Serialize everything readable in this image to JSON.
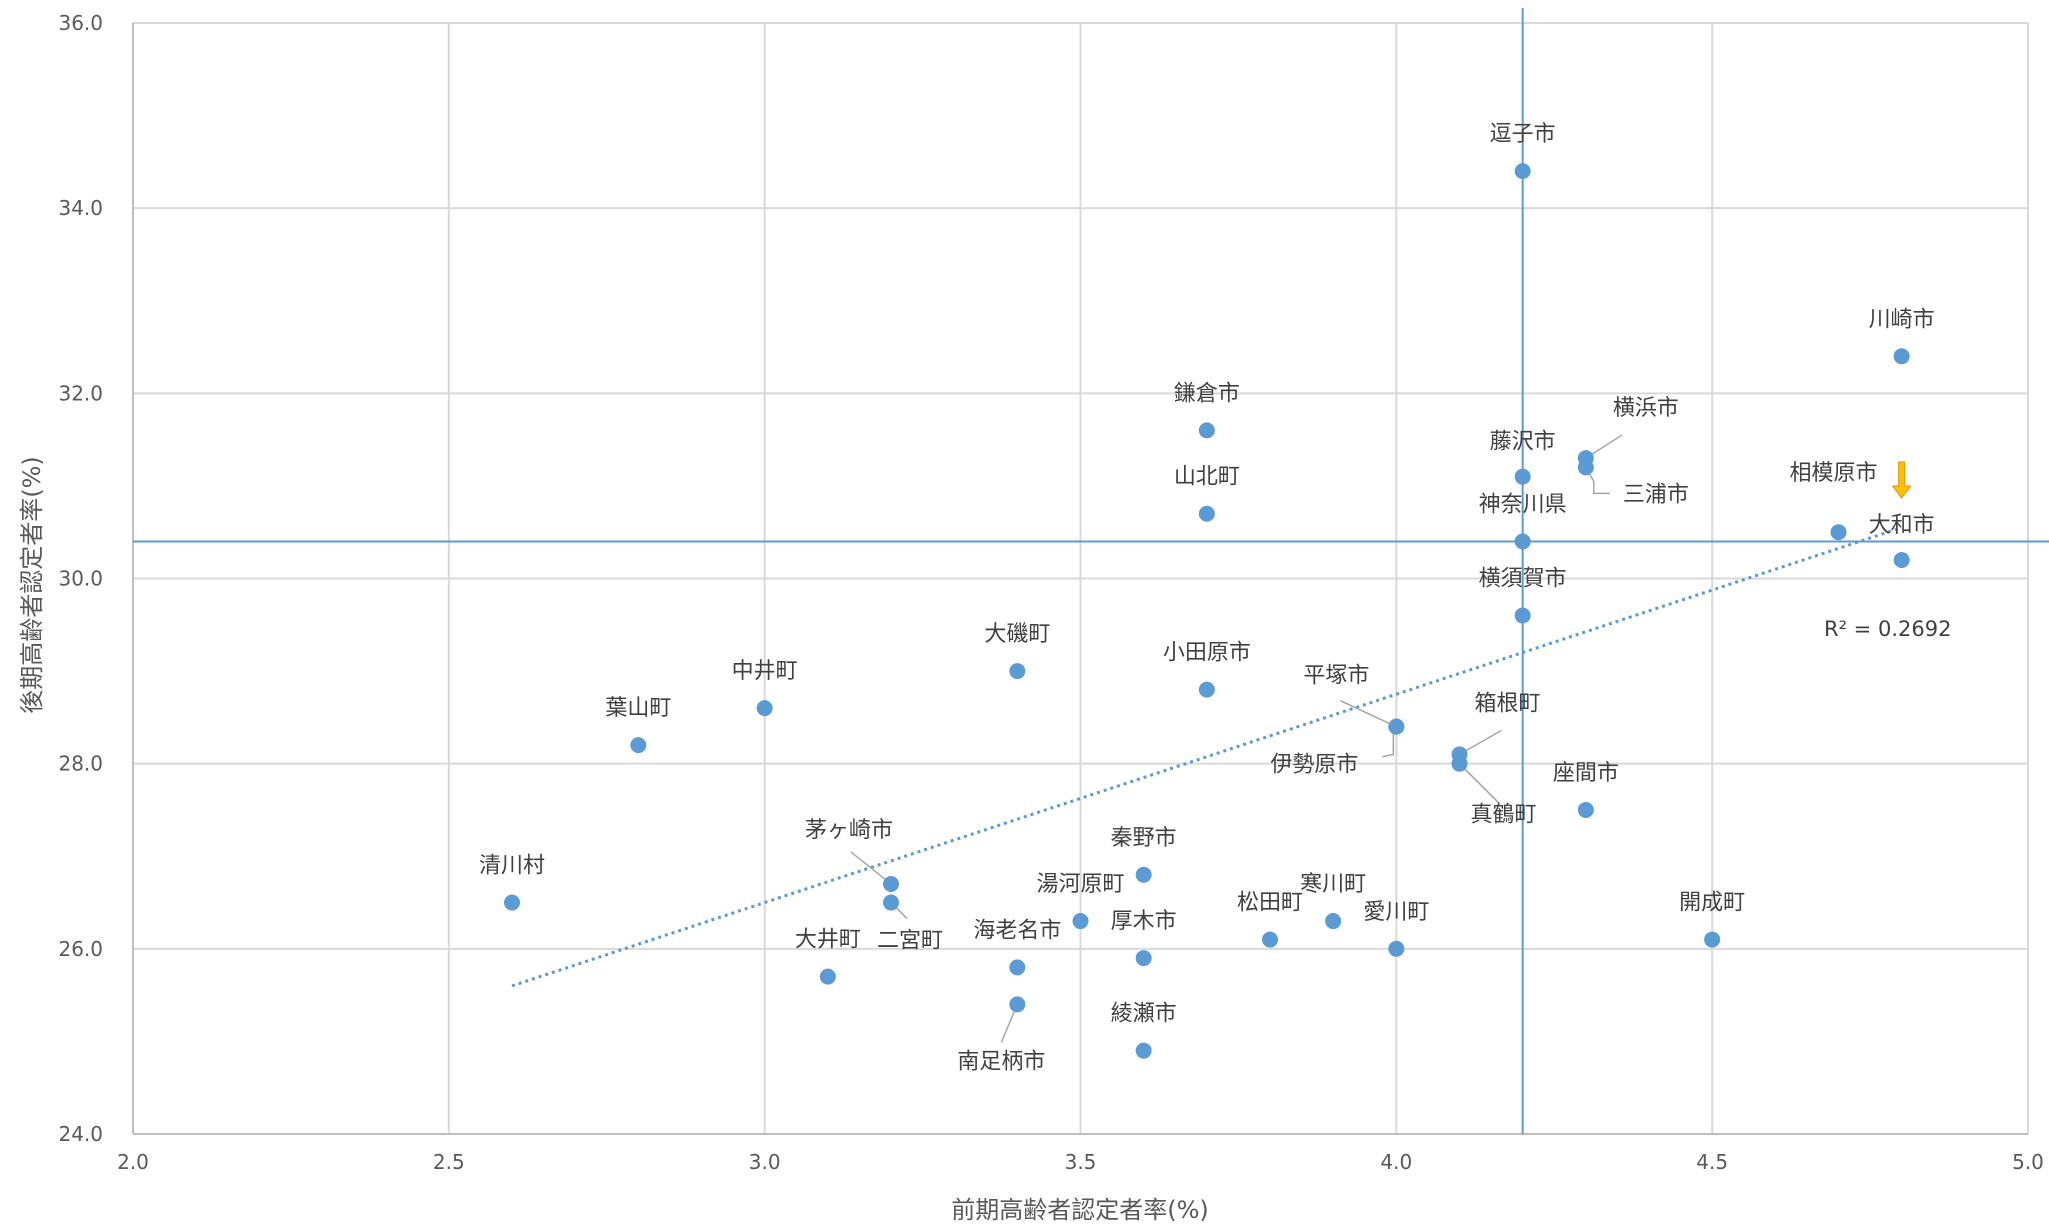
{
  "chart_data": {
    "type": "scatter",
    "xlabel": "前期高齢者認定者率(%)",
    "ylabel": "後期高齢者認定者率(%)",
    "xlim": [
      2.0,
      5.0
    ],
    "ylim": [
      24.0,
      36.0
    ],
    "x_ticks": [
      "2.0",
      "2.5",
      "3.0",
      "3.5",
      "4.0",
      "4.5",
      "5.0"
    ],
    "y_ticks": [
      "24.0",
      "26.0",
      "28.0",
      "30.0",
      "32.0",
      "34.0",
      "36.0"
    ],
    "grid": true,
    "point_color": "#5b9bd5",
    "reference_lines": {
      "x": 4.2,
      "y": 30.4,
      "color": "#5b9bd5"
    },
    "trendline": {
      "type": "linear",
      "x": [
        2.6,
        4.8
      ],
      "y": [
        25.6,
        30.55
      ],
      "style": "dotted",
      "color": "#5b9bd5",
      "r2_label": "R² = 0.2692"
    },
    "highlight_arrow": {
      "target": "大和市",
      "color": "#ffc000"
    },
    "points": [
      {
        "name": "逗子市",
        "x": 4.2,
        "y": 34.4
      },
      {
        "name": "川崎市",
        "x": 4.8,
        "y": 32.4
      },
      {
        "name": "鎌倉市",
        "x": 3.7,
        "y": 31.6
      },
      {
        "name": "横浜市",
        "x": 4.3,
        "y": 31.3
      },
      {
        "name": "三浦市",
        "x": 4.3,
        "y": 31.2
      },
      {
        "name": "藤沢市",
        "x": 4.2,
        "y": 31.1
      },
      {
        "name": "山北町",
        "x": 3.7,
        "y": 30.7
      },
      {
        "name": "相模原市",
        "x": 4.7,
        "y": 30.5
      },
      {
        "name": "神奈川県",
        "x": 4.2,
        "y": 30.4
      },
      {
        "name": "大和市",
        "x": 4.8,
        "y": 30.2
      },
      {
        "name": "横須賀市",
        "x": 4.2,
        "y": 29.6
      },
      {
        "name": "大磯町",
        "x": 3.4,
        "y": 29.0
      },
      {
        "name": "小田原市",
        "x": 3.7,
        "y": 28.8
      },
      {
        "name": "中井町",
        "x": 3.0,
        "y": 28.6
      },
      {
        "name": "平塚市",
        "x": 4.0,
        "y": 28.4
      },
      {
        "name": "伊勢原市",
        "x": 4.0,
        "y": 28.4
      },
      {
        "name": "葉山町",
        "x": 2.8,
        "y": 28.2
      },
      {
        "name": "箱根町",
        "x": 4.1,
        "y": 28.1
      },
      {
        "name": "真鶴町",
        "x": 4.1,
        "y": 28.0
      },
      {
        "name": "座間市",
        "x": 4.3,
        "y": 27.5
      },
      {
        "name": "秦野市",
        "x": 3.6,
        "y": 26.8
      },
      {
        "name": "茅ヶ崎市",
        "x": 3.2,
        "y": 26.7
      },
      {
        "name": "清川村",
        "x": 2.6,
        "y": 26.5
      },
      {
        "name": "二宮町",
        "x": 3.2,
        "y": 26.5
      },
      {
        "name": "湯河原町",
        "x": 3.5,
        "y": 26.3
      },
      {
        "name": "寒川町",
        "x": 3.9,
        "y": 26.3
      },
      {
        "name": "松田町",
        "x": 3.8,
        "y": 26.1
      },
      {
        "name": "開成町",
        "x": 4.5,
        "y": 26.1
      },
      {
        "name": "愛川町",
        "x": 4.0,
        "y": 26.0
      },
      {
        "name": "厚木市",
        "x": 3.6,
        "y": 25.9
      },
      {
        "name": "海老名市",
        "x": 3.4,
        "y": 25.8
      },
      {
        "name": "大井町",
        "x": 3.1,
        "y": 25.7
      },
      {
        "name": "南足柄市",
        "x": 3.4,
        "y": 25.4
      },
      {
        "name": "綾瀬市",
        "x": 3.6,
        "y": 24.9
      }
    ]
  }
}
